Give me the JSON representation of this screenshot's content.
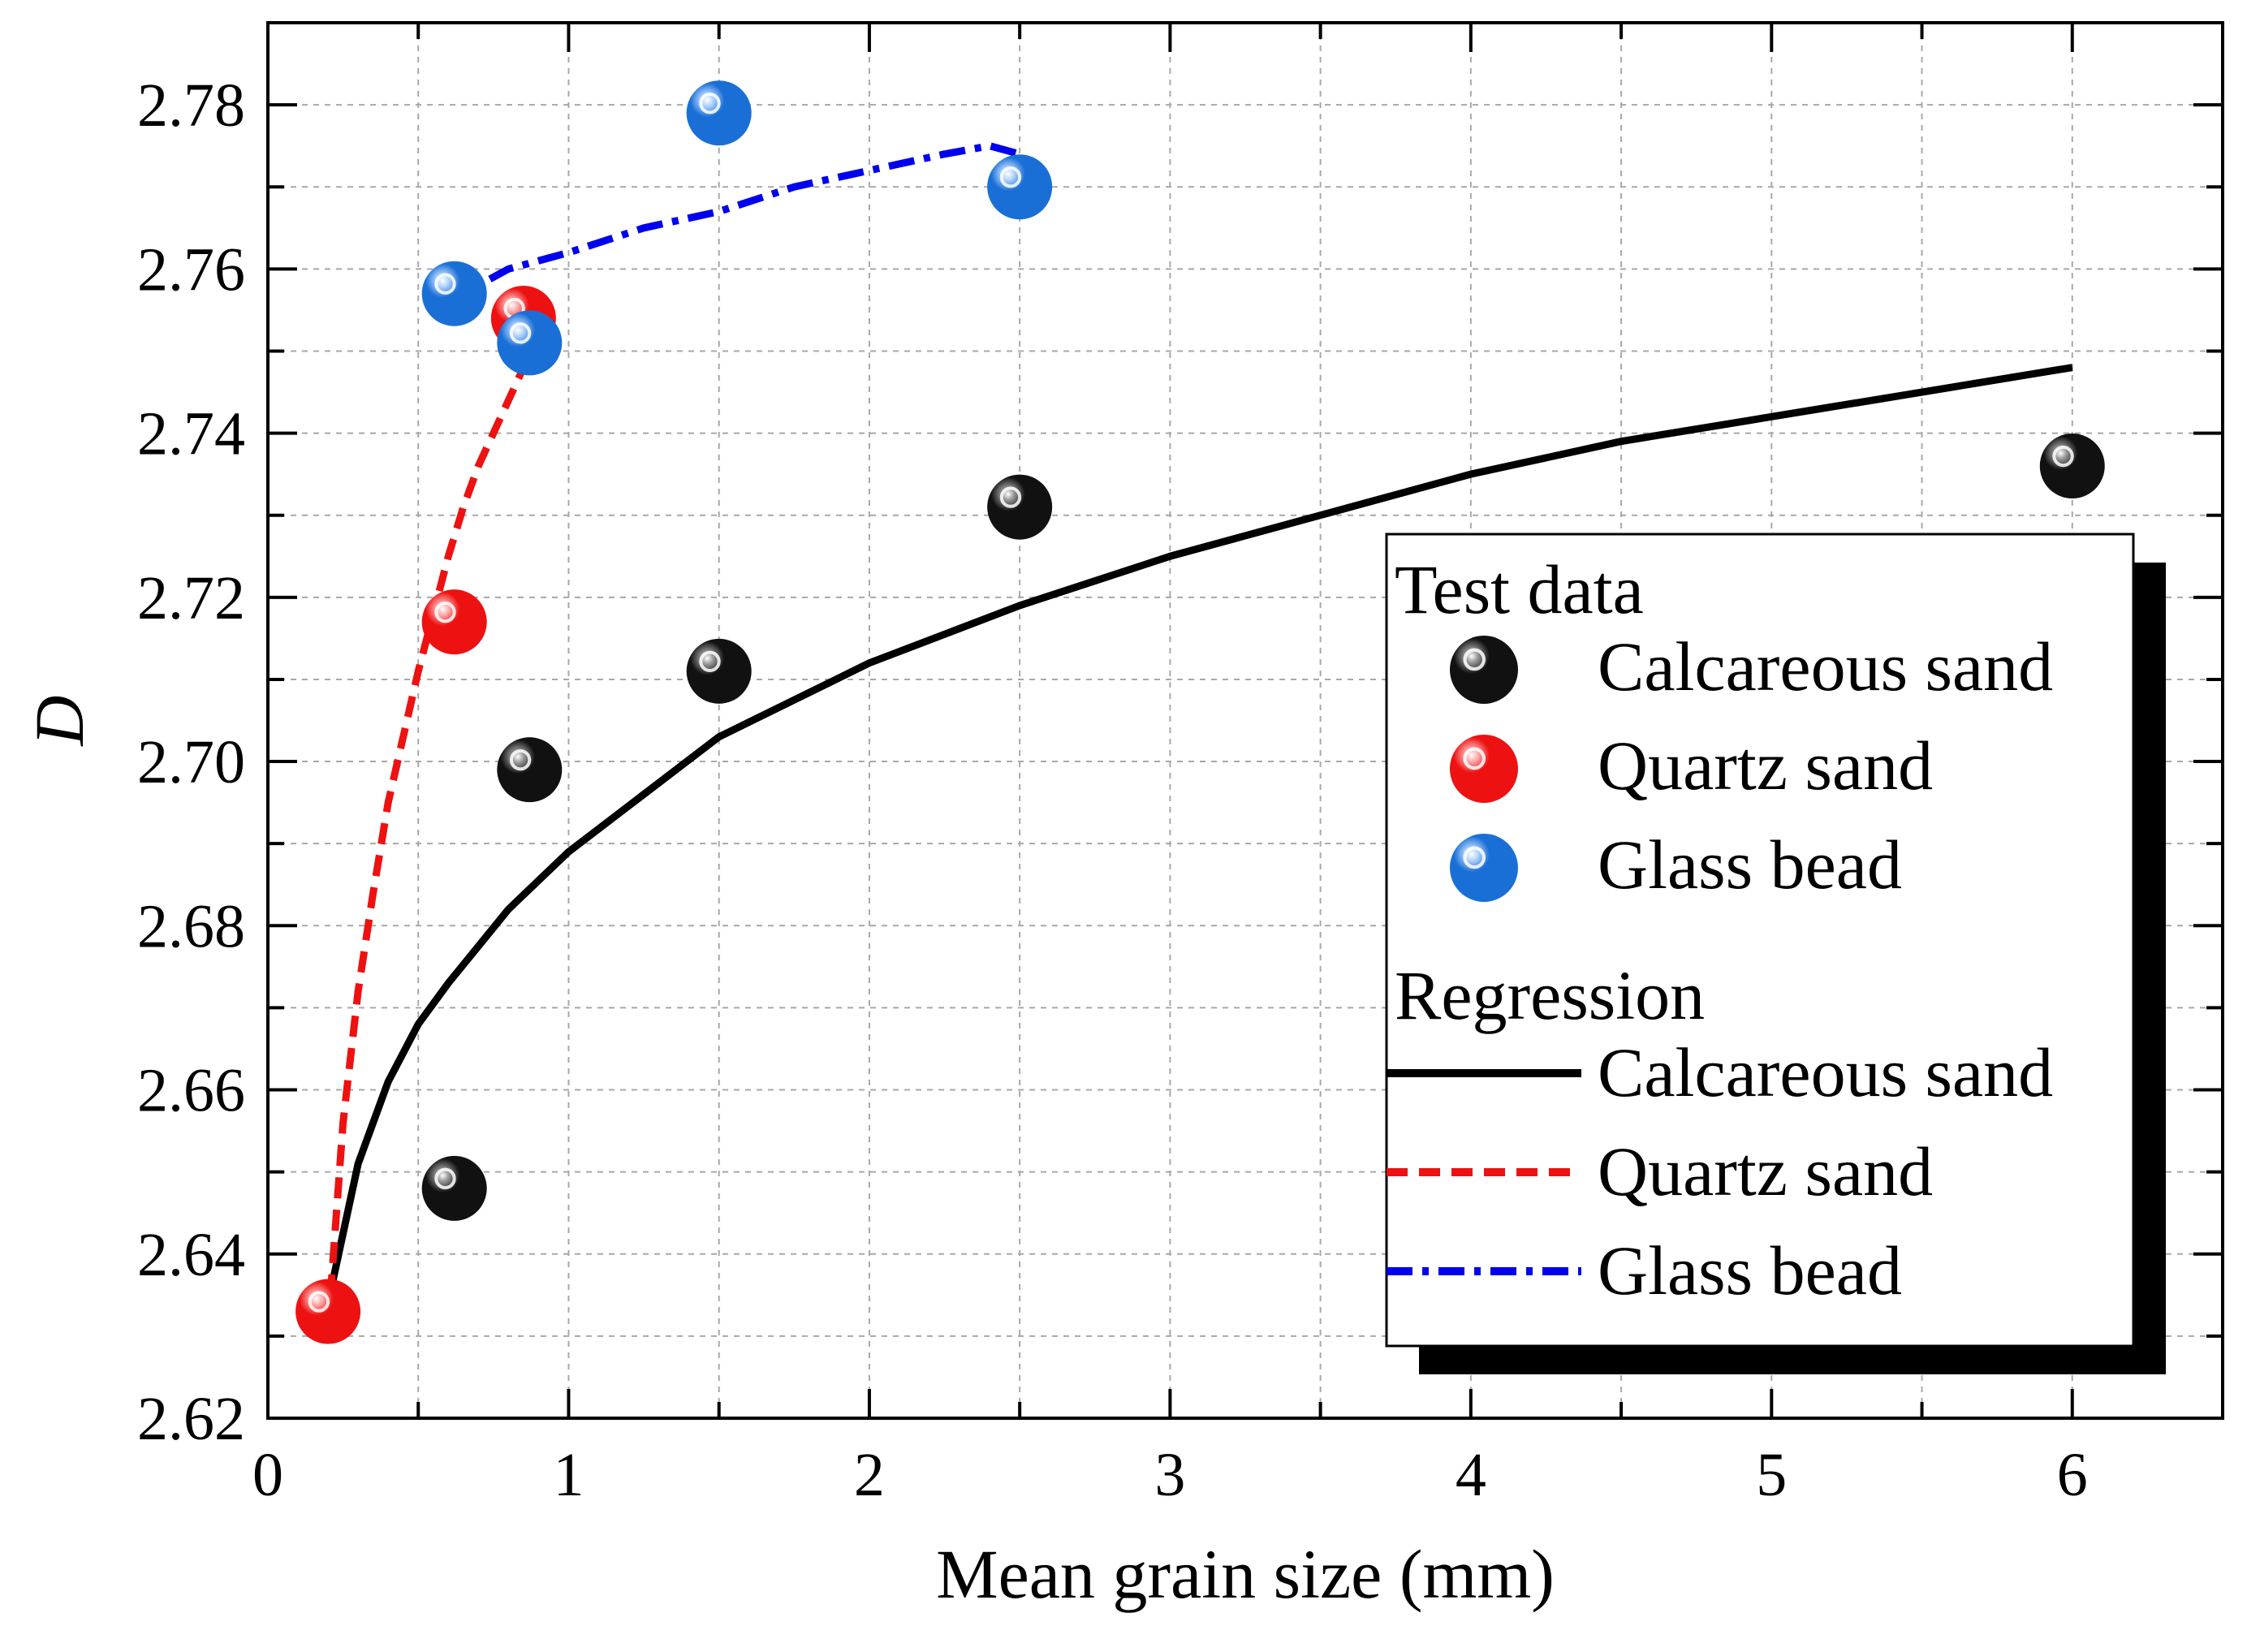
{
  "chart_data": {
    "type": "scatter",
    "title": "",
    "xlabel": "Mean grain size (mm)",
    "ylabel": "D",
    "xlim": [
      0,
      6.5
    ],
    "ylim": [
      2.62,
      2.79
    ],
    "grid": true,
    "x_ticks": [
      0,
      1,
      2,
      3,
      4,
      5,
      6
    ],
    "x_tick_labels": [
      "0",
      "1",
      "2",
      "3",
      "4",
      "5",
      "6"
    ],
    "y_ticks": [
      2.62,
      2.64,
      2.66,
      2.68,
      2.7,
      2.72,
      2.74,
      2.76,
      2.78
    ],
    "y_tick_labels": [
      "2.62",
      "2.64",
      "2.66",
      "2.68",
      "2.70",
      "2.72",
      "2.74",
      "2.76",
      "2.78"
    ],
    "test_data": [
      {
        "name": "Calcareous sand",
        "color": "#111111",
        "highlight": "#9a9a9a",
        "x": [
          0.62,
          0.87,
          1.5,
          2.5,
          6.0
        ],
        "y": [
          2.648,
          2.699,
          2.711,
          2.731,
          2.736
        ]
      },
      {
        "name": "Quartz sand",
        "color": "#ee1111",
        "highlight": "#ffb0b0",
        "x": [
          0.2,
          0.62,
          0.85
        ],
        "y": [
          2.633,
          2.717,
          2.754
        ]
      },
      {
        "name": "Glass bead",
        "color": "#1a6fd6",
        "highlight": "#b5d6ff",
        "x": [
          0.62,
          0.87,
          1.5,
          2.5
        ],
        "y": [
          2.757,
          2.751,
          2.779,
          2.77
        ]
      }
    ],
    "regression": [
      {
        "name": "Calcareous sand",
        "color": "#000000",
        "style": "solid",
        "x": [
          0.2,
          0.3,
          0.4,
          0.5,
          0.6,
          0.8,
          1.0,
          1.25,
          1.5,
          2.0,
          2.5,
          3.0,
          3.5,
          4.0,
          4.5,
          5.0,
          5.5,
          6.0
        ],
        "y": [
          2.634,
          2.651,
          2.661,
          2.668,
          2.673,
          2.682,
          2.689,
          2.696,
          2.703,
          2.712,
          2.719,
          2.725,
          2.73,
          2.735,
          2.739,
          2.742,
          2.745,
          2.748
        ]
      },
      {
        "name": "Quartz sand",
        "color": "#ee1111",
        "style": "dashed",
        "x": [
          0.2,
          0.25,
          0.3,
          0.35,
          0.4,
          0.45,
          0.5,
          0.55,
          0.6,
          0.65,
          0.7,
          0.75,
          0.8,
          0.85
        ],
        "y": [
          2.631,
          2.656,
          2.672,
          2.684,
          2.695,
          2.703,
          2.711,
          2.718,
          2.725,
          2.731,
          2.736,
          2.74,
          2.744,
          2.748
        ]
      },
      {
        "name": "Glass bead",
        "color": "#0000ee",
        "style": "dashdot",
        "x": [
          0.6,
          0.7,
          0.8,
          1.0,
          1.25,
          1.5,
          1.75,
          2.0,
          2.25,
          2.4,
          2.5
        ],
        "y": [
          2.755,
          2.758,
          2.76,
          2.762,
          2.765,
          2.767,
          2.77,
          2.772,
          2.774,
          2.775,
          2.774
        ]
      }
    ],
    "legend": {
      "placement": "bottom-right",
      "test_data_heading": "Test data",
      "regression_heading": "Regression"
    }
  }
}
